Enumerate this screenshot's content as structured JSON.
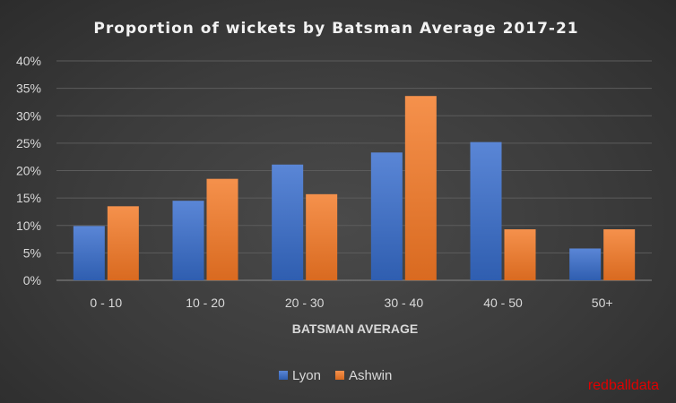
{
  "chart_data": {
    "type": "bar",
    "title": "Proportion of wickets by Batsman Average 2017-21",
    "xlabel": "BATSMAN AVERAGE",
    "ylabel": "",
    "categories": [
      "0 - 10",
      "10 - 20",
      "20 - 30",
      "30 - 40",
      "40 - 50",
      "50+"
    ],
    "series": [
      {
        "name": "Lyon",
        "values": [
          0.099,
          0.145,
          0.211,
          0.233,
          0.252,
          0.058
        ]
      },
      {
        "name": "Ashwin",
        "values": [
          0.135,
          0.185,
          0.157,
          0.336,
          0.093,
          0.093
        ]
      }
    ],
    "ylim": [
      0,
      0.4
    ],
    "yticks": [
      "0%",
      "5%",
      "10%",
      "15%",
      "20%",
      "25%",
      "30%",
      "35%",
      "40%"
    ],
    "ytick_values": [
      0,
      0.05,
      0.1,
      0.15,
      0.2,
      0.25,
      0.3,
      0.35,
      0.4
    ],
    "grid": true,
    "legend_position": "bottom",
    "colors": {
      "Lyon": "#4472c4",
      "Ashwin": "#ed7d31"
    }
  },
  "watermark": "redballdata"
}
